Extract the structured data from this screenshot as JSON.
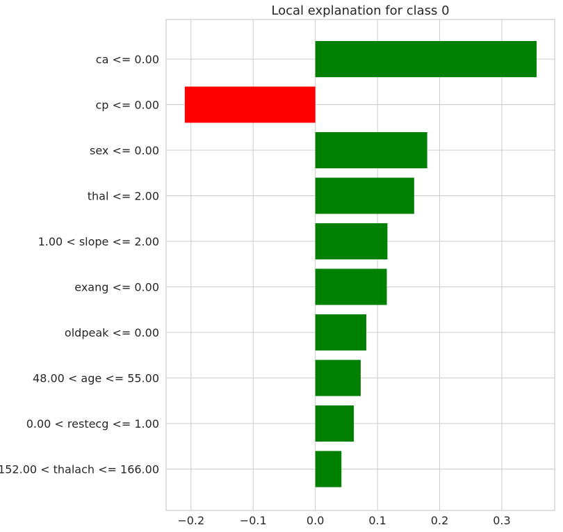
{
  "chart_data": {
    "type": "bar",
    "orientation": "horizontal",
    "title": "Local explanation for class 0",
    "xlabel": "",
    "ylabel": "",
    "xlim": [
      -0.24,
      0.385
    ],
    "xticks": [
      -0.2,
      -0.1,
      0.0,
      0.1,
      0.2,
      0.3
    ],
    "xtick_labels": [
      "−0.2",
      "−0.1",
      "0.0",
      "0.1",
      "0.2",
      "0.3"
    ],
    "grid": true,
    "categories": [
      "ca <= 0.00",
      "cp <= 0.00",
      "sex <= 0.00",
      "thal <= 2.00",
      "1.00 < slope <= 2.00",
      "exang <= 0.00",
      "oldpeak <= 0.00",
      "48.00 < age <= 55.00",
      "0.00 < restecg <= 1.00",
      "152.00 < thalach <= 166.00"
    ],
    "values": [
      0.356,
      -0.21,
      0.18,
      0.159,
      0.116,
      0.115,
      0.082,
      0.073,
      0.062,
      0.042
    ],
    "positive_color": "#008000",
    "negative_color": "#ff0000"
  }
}
